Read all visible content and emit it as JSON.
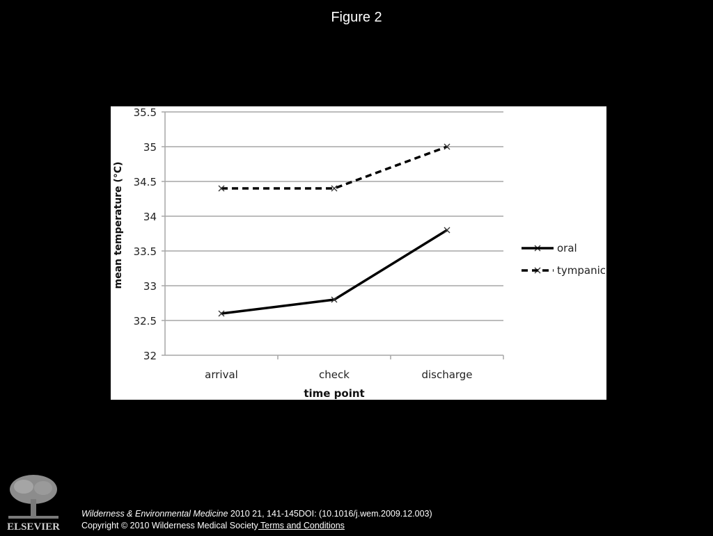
{
  "slide": {
    "title": "Figure 2"
  },
  "chart_data": {
    "type": "line",
    "title": "",
    "xlabel": "time point",
    "ylabel": "mean temperature (°C)",
    "categories": [
      "arrival",
      "check",
      "discharge"
    ],
    "ylim": [
      32,
      35.5
    ],
    "ytick_labels": [
      "32",
      "32.5",
      "33",
      "33.5",
      "34",
      "34.5",
      "35",
      "35.5"
    ],
    "grid": true,
    "legend_position": "right",
    "series": [
      {
        "name": "oral",
        "values": [
          32.6,
          32.8,
          33.8
        ],
        "line_style": "solid",
        "marker": "x",
        "color": "#000000"
      },
      {
        "name": "tympanic",
        "values": [
          34.4,
          34.4,
          35.0
        ],
        "line_style": "dashed",
        "marker": "x",
        "color": "#000000"
      }
    ]
  },
  "footer": {
    "journal": "Wilderness & Environmental Medicine",
    "citation_rest": " 2010 21, 141-145DOI: (10.1016/j.wem.2009.12.003)",
    "copyright": "Copyright © 2010 Wilderness Medical Society",
    "terms_link": " Terms and Conditions",
    "publisher_logo_text": "ELSEVIER",
    "logo_icon": "elsevier-tree-logo"
  }
}
